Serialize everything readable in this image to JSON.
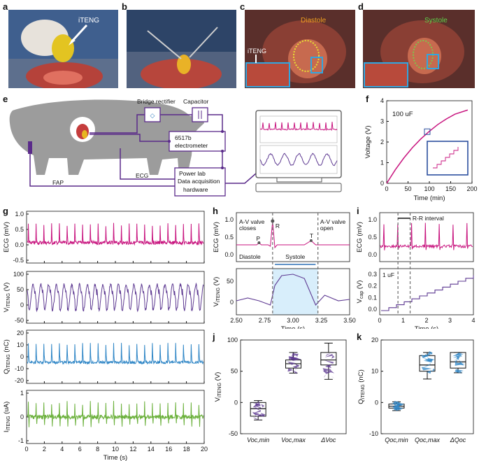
{
  "panels": {
    "a": "a",
    "b": "b",
    "c": "c",
    "d": "d",
    "e": "e",
    "f": "f",
    "g": "g",
    "h": "h",
    "i": "i",
    "j": "j",
    "k": "k"
  },
  "photos": {
    "a_label": "iTENG",
    "c_label": "Diastole",
    "c_iteng": "iTENG",
    "d_label": "Systole"
  },
  "schematic": {
    "bridge": "Bridge rectifier",
    "capacitor": "Capacitor",
    "electrometer_1": "6517b",
    "electrometer_2": "electrometer",
    "powerlab_1": "Power lab",
    "powerlab_2": "Data acquisition",
    "powerlab_3": "hardware",
    "ecg": "ECG",
    "fap": "FAP"
  },
  "colors": {
    "ecg": "#c8157f",
    "v": "#5e3a92",
    "q": "#2f86c6",
    "i": "#6ab03a",
    "cap": "#c8157f"
  },
  "chart_data": [
    {
      "id": "f",
      "type": "line",
      "title": "100 uF",
      "xlabel": "Time (min)",
      "ylabel": "Voltage (V)",
      "xlim": [
        0,
        200
      ],
      "ylim": [
        0,
        4
      ],
      "xticks": [
        "0",
        "50",
        "100",
        "150",
        "200"
      ],
      "yticks": [
        "0",
        "1",
        "2",
        "3",
        "4"
      ],
      "series": [
        {
          "name": "Voltage",
          "x": [
            0,
            20,
            40,
            60,
            80,
            100,
            120,
            140,
            160,
            190
          ],
          "y": [
            0,
            0.65,
            1.22,
            1.72,
            2.15,
            2.52,
            2.85,
            3.12,
            3.35,
            3.55
          ]
        }
      ]
    },
    {
      "id": "g",
      "type": "line",
      "xlabel": "Time (s)",
      "xlim": [
        0,
        20
      ],
      "xticks": [
        "0",
        "2",
        "4",
        "6",
        "8",
        "10",
        "12",
        "14",
        "16",
        "18",
        "20"
      ],
      "rows": [
        {
          "ylabel": "ECG (mV)",
          "ylim": [
            -0.5,
            1.0
          ],
          "yticks": [
            "1.0",
            "0.5",
            "0.0",
            "-0.5"
          ]
        },
        {
          "ylabel": "V_iTENG (V)",
          "ylim": [
            -50,
            100
          ],
          "yticks": [
            "100",
            "50",
            "0",
            "-50"
          ]
        },
        {
          "ylabel": "Q_iTENG (nC)",
          "ylim": [
            -20,
            20
          ],
          "yticks": [
            "20",
            "10",
            "0",
            "-10",
            "-20"
          ]
        },
        {
          "ylabel": "I_iTENG (uA)",
          "ylim": [
            -1,
            1
          ],
          "yticks": [
            "1",
            "0",
            "-1"
          ]
        }
      ]
    },
    {
      "id": "h",
      "type": "line",
      "xlabel": "Time (s)",
      "xlim": [
        2.5,
        3.5
      ],
      "xticks": [
        "2.50",
        "2.75",
        "3.00",
        "3.25",
        "3.50"
      ],
      "ecg": {
        "ylabel": "ECG (mV)",
        "yticks": [
          "1.0",
          "0.5",
          "0.0"
        ]
      },
      "v": {
        "ylabel": "V_iTENG (V)",
        "yticks": [
          "50",
          "0"
        ]
      },
      "annotations": {
        "r": "R",
        "p": "P",
        "t": "T",
        "av_close_1": "A-V valve",
        "av_close_2": "closes",
        "av_open_1": "A-V valve",
        "av_open_2": "open",
        "diastole": "Diastole",
        "systole": "Systole"
      }
    },
    {
      "id": "i",
      "type": "line",
      "xlabel": "Time (s)",
      "xlim": [
        0,
        4
      ],
      "xticks": [
        "0",
        "1",
        "2",
        "3",
        "4"
      ],
      "ecg": {
        "ylabel": "ECG (mV)",
        "yticks": [
          "1.0",
          "0.5",
          "0.0"
        ]
      },
      "cap": {
        "ylabel": "V_cap (V)",
        "yticks": [
          "0.3",
          "0.2",
          "0.1",
          "0.0"
        ],
        "note": "1 uF"
      },
      "annotations": {
        "rr": "R-R interval"
      }
    },
    {
      "id": "j",
      "type": "box",
      "ylabel": "V_iTENG (V)",
      "ylim": [
        -50,
        100
      ],
      "yticks": [
        "100",
        "50",
        "0",
        "-50"
      ],
      "categories": [
        "Voc,min",
        "Voc,max",
        "ΔVoc"
      ],
      "boxes": [
        {
          "q1": -22,
          "median": -10,
          "q3": 0,
          "low": -28,
          "high": 3
        },
        {
          "q1": 55,
          "median": 62,
          "q3": 68,
          "low": 47,
          "high": 80
        },
        {
          "q1": 60,
          "median": 68,
          "q3": 80,
          "low": 37,
          "high": 95
        }
      ]
    },
    {
      "id": "k",
      "type": "box",
      "ylabel": "Q_iTENG (nC)",
      "ylim": [
        -10,
        20
      ],
      "yticks": [
        "20",
        "10",
        "0",
        "-10"
      ],
      "categories": [
        "Qoc,min",
        "Qoc,max",
        "ΔQoc"
      ],
      "boxes": [
        {
          "q1": -1.8,
          "median": -1.2,
          "q3": -0.5,
          "low": -2.6,
          "high": 0.2
        },
        {
          "q1": 10,
          "median": 12,
          "q3": 15,
          "low": 7.5,
          "high": 16
        },
        {
          "q1": 11,
          "median": 13,
          "q3": 16,
          "low": 9.5,
          "high": 16
        }
      ]
    }
  ]
}
